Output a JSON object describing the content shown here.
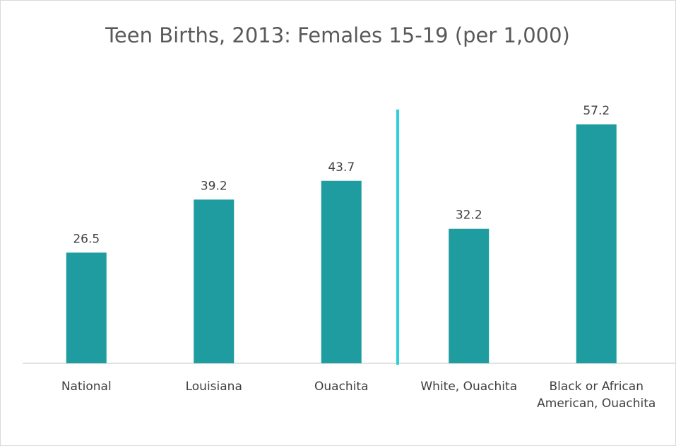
{
  "chart_data": {
    "type": "bar",
    "title": "Teen Births, 2013: Females 15-19 (per 1,000)",
    "categories": [
      "National",
      "Louisiana",
      "Ouachita",
      "White, Ouachita",
      "Black or African American, Ouachita"
    ],
    "values": [
      26.5,
      39.2,
      43.7,
      32.2,
      57.2
    ],
    "color": "#1f9ca0"
  }
}
